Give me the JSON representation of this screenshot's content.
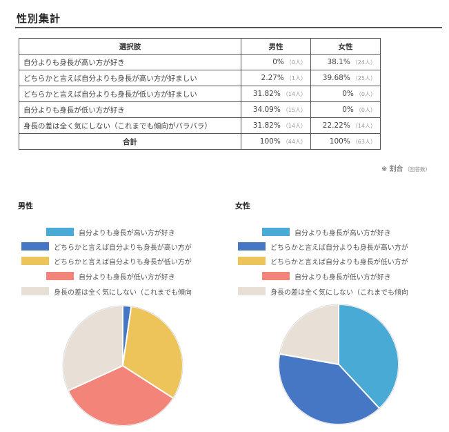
{
  "section_title": "性別集計",
  "table": {
    "headers": [
      "選択肢",
      "男性",
      "女性"
    ],
    "rows": [
      {
        "choice": "自分よりも身長が高い方が好き",
        "male_pct": "0%",
        "male_cnt": "（0人）",
        "female_pct": "38.1%",
        "female_cnt": "（24人）"
      },
      {
        "choice": "どちらかと言えば自分よりも身長が高い方が好ましい",
        "male_pct": "2.27%",
        "male_cnt": "（1人）",
        "female_pct": "39.68%",
        "female_cnt": "（25人）"
      },
      {
        "choice": "どちらかと言えば自分よりも身長が低い方が好ましい",
        "male_pct": "31.82%",
        "male_cnt": "（14人）",
        "female_pct": "0%",
        "female_cnt": "（0人）"
      },
      {
        "choice": "自分よりも身長が低い方が好き",
        "male_pct": "34.09%",
        "male_cnt": "（15人）",
        "female_pct": "0%",
        "female_cnt": "（0人）"
      },
      {
        "choice": "身長の差は全く気にしない（これまでも傾向がバラバラ）",
        "male_pct": "31.82%",
        "male_cnt": "（14人）",
        "female_pct": "22.22%",
        "female_cnt": "（14人）"
      }
    ],
    "total": {
      "label": "合計",
      "male_pct": "100%",
      "male_cnt": "（44人）",
      "female_pct": "100%",
      "female_cnt": "（63人）"
    }
  },
  "note": {
    "main": "※ 割合",
    "sub": "（回答数）"
  },
  "legend_labels": [
    "自分よりも身長が高い方が好き",
    "どちらかと言えば自分よりも身長が高い方が",
    "どちらかと言えば自分よりも身長が低い方が",
    "自分よりも身長が低い方が好き",
    "身長の差は全く気にしない（これまでも傾向"
  ],
  "colors": [
    "#4aaad6",
    "#4677c4",
    "#ecc45a",
    "#f3847a",
    "#e8e0d6"
  ],
  "chart_data": [
    {
      "type": "pie",
      "title": "男性",
      "categories": [
        "自分よりも身長が高い方が好き",
        "どちらかと言えば自分よりも身長が高い方が好ましい",
        "どちらかと言えば自分よりも身長が低い方が好ましい",
        "自分よりも身長が低い方が好き",
        "身長の差は全く気にしない（これまでも傾向がバラバラ）"
      ],
      "values": [
        0,
        2.27,
        31.82,
        34.09,
        31.82
      ],
      "counts": [
        0,
        1,
        14,
        15,
        14
      ],
      "legend_position": "top"
    },
    {
      "type": "pie",
      "title": "女性",
      "categories": [
        "自分よりも身長が高い方が好き",
        "どちらかと言えば自分よりも身長が高い方が好ましい",
        "どちらかと言えば自分よりも身長が低い方が好ましい",
        "自分よりも身長が低い方が好き",
        "身長の差は全く気にしない（これまでも傾向がバラバラ）"
      ],
      "values": [
        38.1,
        39.68,
        0,
        0,
        22.22
      ],
      "counts": [
        24,
        25,
        0,
        0,
        14
      ],
      "legend_position": "top"
    }
  ]
}
